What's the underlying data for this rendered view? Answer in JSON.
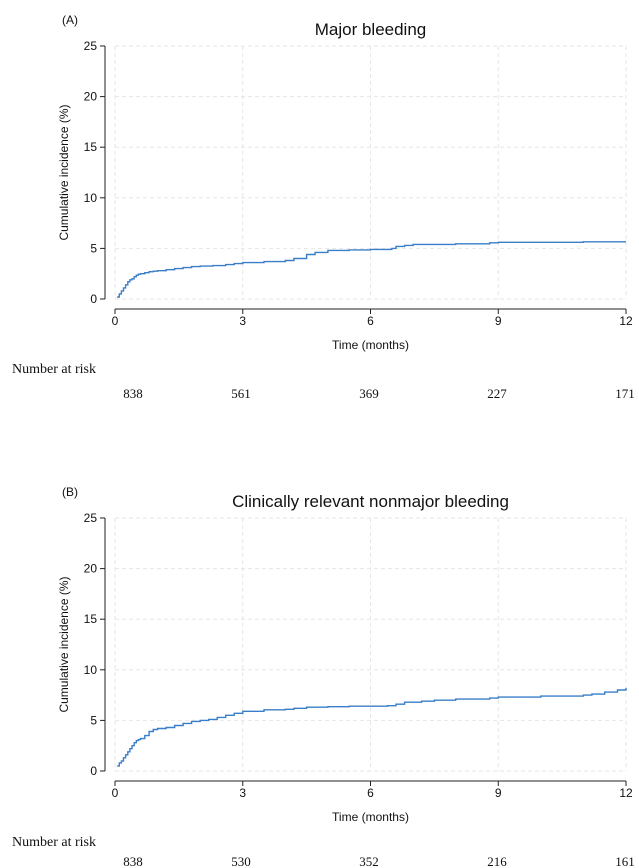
{
  "chart_data": [
    {
      "type": "line",
      "step": true,
      "panel_label": "(A)",
      "title": "Major bleeding",
      "xlabel": "Time (months)",
      "ylabel": "Cumulative incidence (%)",
      "xlim": [
        0,
        12
      ],
      "ylim": [
        0,
        25
      ],
      "xticks": [
        0,
        3,
        6,
        9,
        12
      ],
      "yticks": [
        0,
        5,
        10,
        15,
        20,
        25
      ],
      "grid": true,
      "line_color": "#3a7dc9",
      "series": [
        {
          "x": [
            0.05,
            0.1,
            0.15,
            0.2,
            0.25,
            0.3,
            0.35,
            0.4,
            0.45,
            0.5,
            0.55,
            0.6,
            0.7,
            0.8,
            0.9,
            1.0,
            1.2,
            1.4,
            1.6,
            1.8,
            2.0,
            2.3,
            2.6,
            2.8,
            3.0,
            3.5,
            4.0,
            4.2,
            4.5,
            4.7,
            5.0,
            5.5,
            6.0,
            6.5,
            6.6,
            6.8,
            7.0,
            8.0,
            8.8,
            9.0,
            10.0,
            11.0,
            12.0
          ],
          "y": [
            0.2,
            0.5,
            0.8,
            1.1,
            1.4,
            1.7,
            1.9,
            2.0,
            2.2,
            2.35,
            2.45,
            2.5,
            2.6,
            2.7,
            2.75,
            2.8,
            2.9,
            3.0,
            3.1,
            3.2,
            3.25,
            3.3,
            3.4,
            3.5,
            3.6,
            3.7,
            3.8,
            4.0,
            4.4,
            4.6,
            4.8,
            4.85,
            4.9,
            5.0,
            5.2,
            5.3,
            5.4,
            5.45,
            5.55,
            5.6,
            5.6,
            5.65,
            5.65
          ]
        }
      ],
      "risk_table": {
        "title": "Number at risk",
        "times": [
          0,
          3,
          6,
          9,
          12
        ],
        "values": [
          "838",
          "561",
          "369",
          "227",
          "171"
        ]
      }
    },
    {
      "type": "line",
      "step": true,
      "panel_label": "(B)",
      "title": "Clinically relevant nonmajor bleeding",
      "xlabel": "Time (months)",
      "ylabel": "Cumulative incidence (%)",
      "xlim": [
        0,
        12
      ],
      "ylim": [
        0,
        25
      ],
      "xticks": [
        0,
        3,
        6,
        9,
        12
      ],
      "yticks": [
        0,
        5,
        10,
        15,
        20,
        25
      ],
      "grid": true,
      "line_color": "#3a7dc9",
      "series": [
        {
          "x": [
            0.05,
            0.1,
            0.15,
            0.2,
            0.25,
            0.3,
            0.35,
            0.4,
            0.45,
            0.5,
            0.55,
            0.6,
            0.7,
            0.8,
            0.9,
            1.0,
            1.2,
            1.4,
            1.6,
            1.8,
            2.0,
            2.2,
            2.4,
            2.6,
            2.8,
            3.0,
            3.5,
            4.0,
            4.2,
            4.5,
            5.0,
            5.5,
            6.0,
            6.4,
            6.6,
            6.8,
            7.2,
            7.5,
            8.0,
            8.8,
            9.0,
            10.0,
            11.0,
            11.2,
            11.5,
            11.8,
            12.0
          ],
          "y": [
            0.5,
            0.8,
            1.0,
            1.3,
            1.6,
            1.9,
            2.2,
            2.5,
            2.8,
            3.0,
            3.1,
            3.2,
            3.5,
            3.9,
            4.1,
            4.2,
            4.3,
            4.5,
            4.7,
            4.9,
            5.0,
            5.1,
            5.3,
            5.5,
            5.7,
            5.9,
            6.05,
            6.1,
            6.2,
            6.3,
            6.35,
            6.4,
            6.4,
            6.45,
            6.6,
            6.8,
            6.9,
            7.0,
            7.1,
            7.2,
            7.3,
            7.4,
            7.5,
            7.6,
            7.8,
            8.0,
            8.2
          ]
        }
      ],
      "risk_table": {
        "title": "Number at risk",
        "times": [
          0,
          3,
          6,
          9,
          12
        ],
        "values": [
          "838",
          "530",
          "352",
          "216",
          "161"
        ]
      }
    }
  ]
}
